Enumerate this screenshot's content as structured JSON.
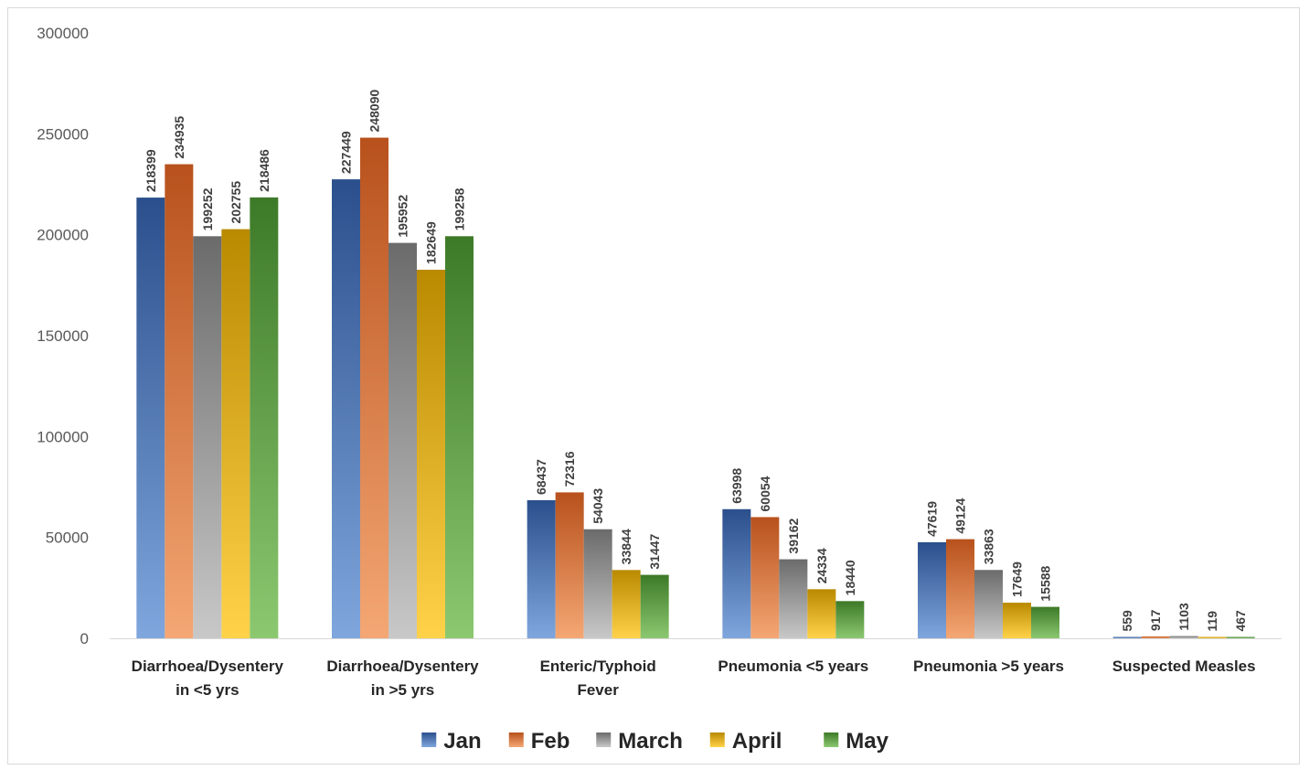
{
  "chart_data": {
    "type": "bar",
    "title": "",
    "xlabel": "",
    "ylabel": "",
    "ylim": [
      0,
      300000
    ],
    "yticks": [
      "0",
      "50000",
      "100000",
      "150000",
      "200000",
      "250000",
      "300000"
    ],
    "grid": false,
    "legend": "bottom",
    "categories": [
      [
        "Diarrhoea/Dysentery",
        "in <5 yrs"
      ],
      [
        "Diarrhoea/Dysentery",
        "in >5 yrs"
      ],
      [
        "Enteric/Typhoid",
        "Fever"
      ],
      [
        "Pneumonia <5 years"
      ],
      [
        "Pneumonia >5 years"
      ],
      [
        "Suspected Measles"
      ]
    ],
    "series": [
      {
        "name": "Jan",
        "values": [
          218399,
          227449,
          68437,
          63998,
          47619,
          559
        ],
        "labels": [
          "218399",
          "227449",
          "68437",
          "63998",
          "47619",
          "559"
        ],
        "colors": [
          "#2b4f8c",
          "#7fa6dd"
        ]
      },
      {
        "name": "Feb",
        "values": [
          234935,
          248090,
          72316,
          60054,
          49124,
          917
        ],
        "labels": [
          "234935",
          "248090",
          "72316",
          "60054",
          "49124",
          "917"
        ],
        "colors": [
          "#b8511c",
          "#f4a774"
        ]
      },
      {
        "name": "March",
        "values": [
          199252,
          195952,
          54043,
          39162,
          33863,
          1103
        ],
        "labels": [
          "199252",
          "195952",
          "54043",
          "39162",
          "33863",
          "1103"
        ],
        "colors": [
          "#6b6b6b",
          "#c8c8c8"
        ]
      },
      {
        "name": "April",
        "values": [
          202755,
          182649,
          33844,
          24334,
          17649,
          119
        ],
        "labels": [
          "202755",
          "182649",
          "33844",
          "24334",
          "17649",
          "119"
        ],
        "colors": [
          "#b98a00",
          "#ffd24a"
        ]
      },
      {
        "name": "May",
        "values": [
          218486,
          199258,
          31447,
          18440,
          15588,
          467
        ],
        "labels": [
          "218486",
          "199258",
          "31447",
          "18440",
          "15588",
          "467"
        ],
        "colors": [
          "#3d7a28",
          "#8cc870"
        ]
      }
    ]
  }
}
